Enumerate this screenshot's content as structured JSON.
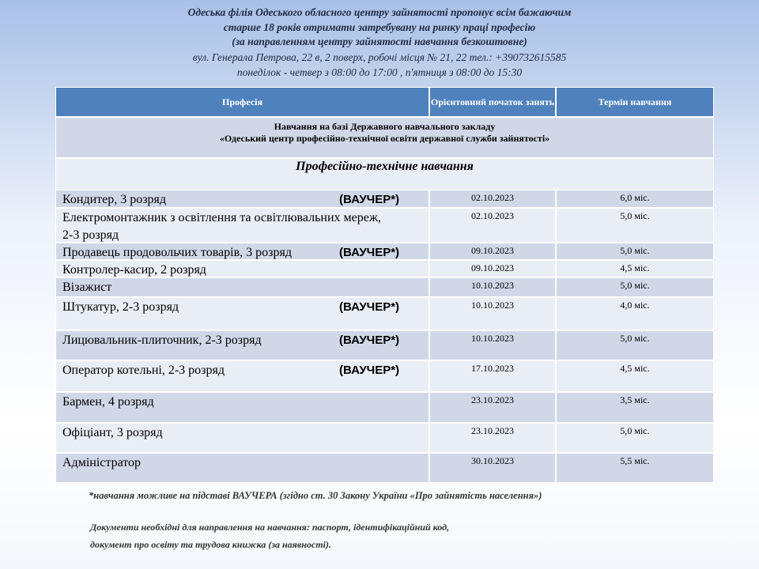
{
  "header": {
    "lines": [
      "Одеська філія Одеського обласного центру зайнятості пропонує всім бажаючим",
      "старше 18 років отримати затребувану на ринку праці професію",
      "(за направленням центру зайнятості навчання безкоштовне)",
      "вул. Генерала Петрова, 22 в, 2 поверх, робочі місця  № 21, 22 тел.: +390732615585",
      "понеділок - четвер з 08:00 до 17:00 , п'ятниця з 08:00 до 15:30"
    ]
  },
  "table": {
    "columns": [
      "Професія",
      "Орієнтовний початок занять",
      "Термін навчання"
    ],
    "section": [
      "Навчання на базі Державного навчального закладу",
      "«Одеський центр професійно-технічної освіти державної служби зайнятості»"
    ],
    "subsection": "Професійно-технічне навчання",
    "rows": [
      {
        "profession": "Кондитер, 3 розряд",
        "voucher": "(ВАУЧЕР*)",
        "start": "02.10.2023",
        "term": "6,0 міс."
      },
      {
        "profession": "Електромонтажник з освітлення та освітлювальних мереж, 2-3 розряд",
        "start": "02.10.2023",
        "term": "5,0 міс."
      },
      {
        "profession": "Продавець продовольчих товарів, 3 розряд",
        "voucher": "(ВАУЧЕР*)",
        "start": "09.10.2023",
        "term": "5,0 міс."
      },
      {
        "profession": "Контролер-касир, 2 розряд",
        "start": "09.10.2023",
        "term": "4,5 міс."
      },
      {
        "profession": "Візажист",
        "start": "10.10.2023",
        "term": "5,0 міс."
      },
      {
        "profession": "Штукатур, 2-3 розряд",
        "voucher": "(ВАУЧЕР*)",
        "start": "10.10.2023",
        "term": "4,0 міс."
      },
      {
        "profession": "Лицювальник-плиточник, 2-3 розряд",
        "voucher": "(ВАУЧЕР*)",
        "start": "10.10.2023",
        "term": "5,0 міс."
      },
      {
        "profession": "Оператор котельні, 2-3 розряд",
        "voucher": "(ВАУЧЕР*)",
        "start": "17.10.2023",
        "term": "4,5 міс."
      },
      {
        "profession": "Бармен, 4 розряд",
        "start": "23.10.2023",
        "term": "3,5 міс."
      },
      {
        "profession": "Офіціант, 3 розряд",
        "start": "23.10.2023",
        "term": "5,0 міс."
      },
      {
        "profession": "Адміністратор",
        "start": "30.10.2023",
        "term": "5,5 міс."
      }
    ]
  },
  "footer": {
    "note": "*навчання можливе на підставі ВАУЧЕРА (згідно ст. 30 Закону України «Про зайнятість населення»)",
    "documents": [
      "Документи необхідні для направлення на навчання: паспорт, ідентифікаційний код,",
      "документ про освіту та трудова книжка (за наявності)."
    ]
  }
}
